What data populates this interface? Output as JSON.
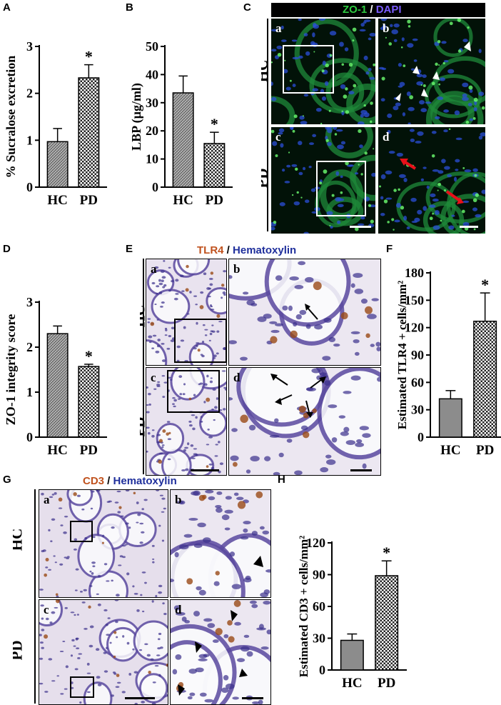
{
  "panel_labels": {
    "A": "A",
    "B": "B",
    "C": "C",
    "D": "D",
    "E": "E",
    "F": "F",
    "G": "G",
    "H": "H"
  },
  "chart_data": [
    {
      "id": "A",
      "type": "bar",
      "categories": [
        "HC",
        "PD"
      ],
      "values": [
        0.97,
        2.33
      ],
      "errors": [
        0.28,
        0.28
      ],
      "ylabel": "% Sucralose excretion",
      "ylim": [
        0,
        3
      ],
      "yticks": [
        0,
        1,
        2,
        3
      ],
      "significance": [
        "",
        "*"
      ],
      "grid": false
    },
    {
      "id": "B",
      "type": "bar",
      "categories": [
        "HC",
        "PD"
      ],
      "values": [
        33.5,
        15.5
      ],
      "errors": [
        6.0,
        4.0
      ],
      "ylabel": "LBP (µg/ml)",
      "ylim": [
        0,
        50
      ],
      "yticks": [
        0,
        10,
        20,
        30,
        40,
        50
      ],
      "significance": [
        "",
        "*"
      ],
      "grid": false
    },
    {
      "id": "D",
      "type": "bar",
      "categories": [
        "HC",
        "PD"
      ],
      "values": [
        2.3,
        1.57
      ],
      "errors": [
        0.17,
        0.05
      ],
      "ylabel": "ZO-1 integrity score",
      "ylim": [
        0,
        3
      ],
      "yticks": [
        0,
        1,
        2,
        3
      ],
      "significance": [
        "",
        "*"
      ],
      "grid": false
    },
    {
      "id": "F",
      "type": "bar",
      "categories": [
        "HC",
        "PD"
      ],
      "values": [
        42,
        127
      ],
      "errors": [
        9,
        31
      ],
      "ylabel": "Estimated TLR4 + cells/mm²",
      "ylim": [
        0,
        180
      ],
      "yticks": [
        0,
        30,
        60,
        90,
        120,
        150,
        180
      ],
      "significance": [
        "",
        "*"
      ],
      "grid": false
    },
    {
      "id": "H",
      "type": "bar",
      "categories": [
        "HC",
        "PD"
      ],
      "values": [
        28,
        89
      ],
      "errors": [
        6,
        14
      ],
      "ylabel": "Estimated CD3 + cells/mm²",
      "ylim": [
        0,
        120
      ],
      "yticks": [
        0,
        30,
        60,
        90,
        120
      ],
      "significance": [
        "",
        "*"
      ],
      "grid": false
    }
  ],
  "micrographs": {
    "C": {
      "stain1": "ZO-1",
      "sep": " / ",
      "stain2": "DAPI",
      "row1": "HC",
      "row2": "PD",
      "tiles": [
        "a",
        "b",
        "c",
        "d"
      ],
      "colors": {
        "stain1": "#2ecc40",
        "stain2": "#5a3fd6"
      }
    },
    "E": {
      "stain1": "TLR4",
      "sep": " / ",
      "stain2": "Hematoxylin",
      "row1": "HC",
      "row2": "PD",
      "tiles": [
        "a",
        "b",
        "c",
        "d"
      ],
      "colors": {
        "stain1": "#c0521e",
        "stain2": "#1f2f9c"
      }
    },
    "G": {
      "stain1": "CD3",
      "sep": " / ",
      "stain2": "Hematoxylin",
      "row1": "HC",
      "row2": "PD",
      "tiles": [
        "a",
        "b",
        "c",
        "d"
      ],
      "colors": {
        "stain1": "#c0521e",
        "stain2": "#1f2f9c"
      }
    }
  }
}
